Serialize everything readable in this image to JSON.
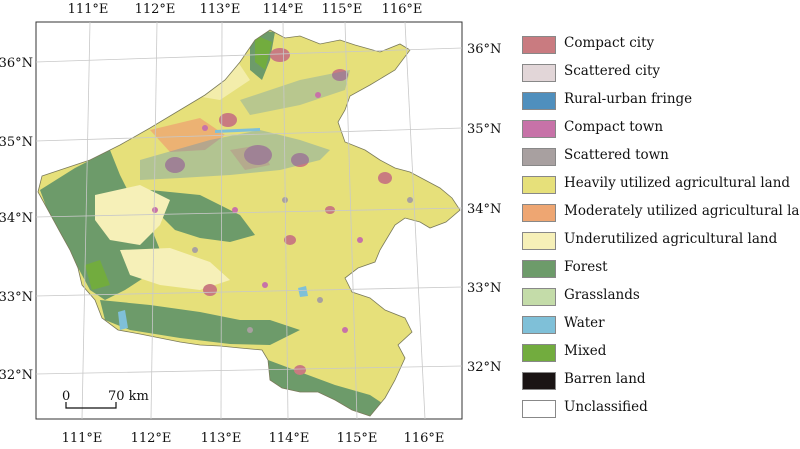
{
  "map": {
    "lon_labels": [
      "111°E",
      "112°E",
      "113°E",
      "114°E",
      "115°E",
      "116°E"
    ],
    "lat_labels": [
      "36°N",
      "35°N",
      "34°N",
      "33°N",
      "32°N"
    ],
    "scale_zero": "0",
    "scale_end": "70 km"
  },
  "legend": {
    "items": [
      {
        "label": "Compact city",
        "color": "#c97b80"
      },
      {
        "label": "Scattered city",
        "color": "#e2d6d8"
      },
      {
        "label": "Rural-urban fringe",
        "color": "#4f8fbd"
      },
      {
        "label": "Compact town",
        "color": "#c772a8"
      },
      {
        "label": "Scattered town",
        "color": "#a8a0a0"
      },
      {
        "label": "Heavily utilized agricultural land",
        "color": "#e6e07a"
      },
      {
        "label": "Moderately utilized agricultural land",
        "color": "#eea672"
      },
      {
        "label": "Underutilized agricultural land",
        "color": "#f6f0b8"
      },
      {
        "label": "Forest",
        "color": "#6d9b6a"
      },
      {
        "label": "Grasslands",
        "color": "#c4dca9"
      },
      {
        "label": "Water",
        "color": "#7fc0d8"
      },
      {
        "label": "Mixed",
        "color": "#72ac3e"
      },
      {
        "label": "Barren land",
        "color": "#1a1414"
      },
      {
        "label": "Unclassified",
        "color": "#ffffff"
      }
    ]
  }
}
